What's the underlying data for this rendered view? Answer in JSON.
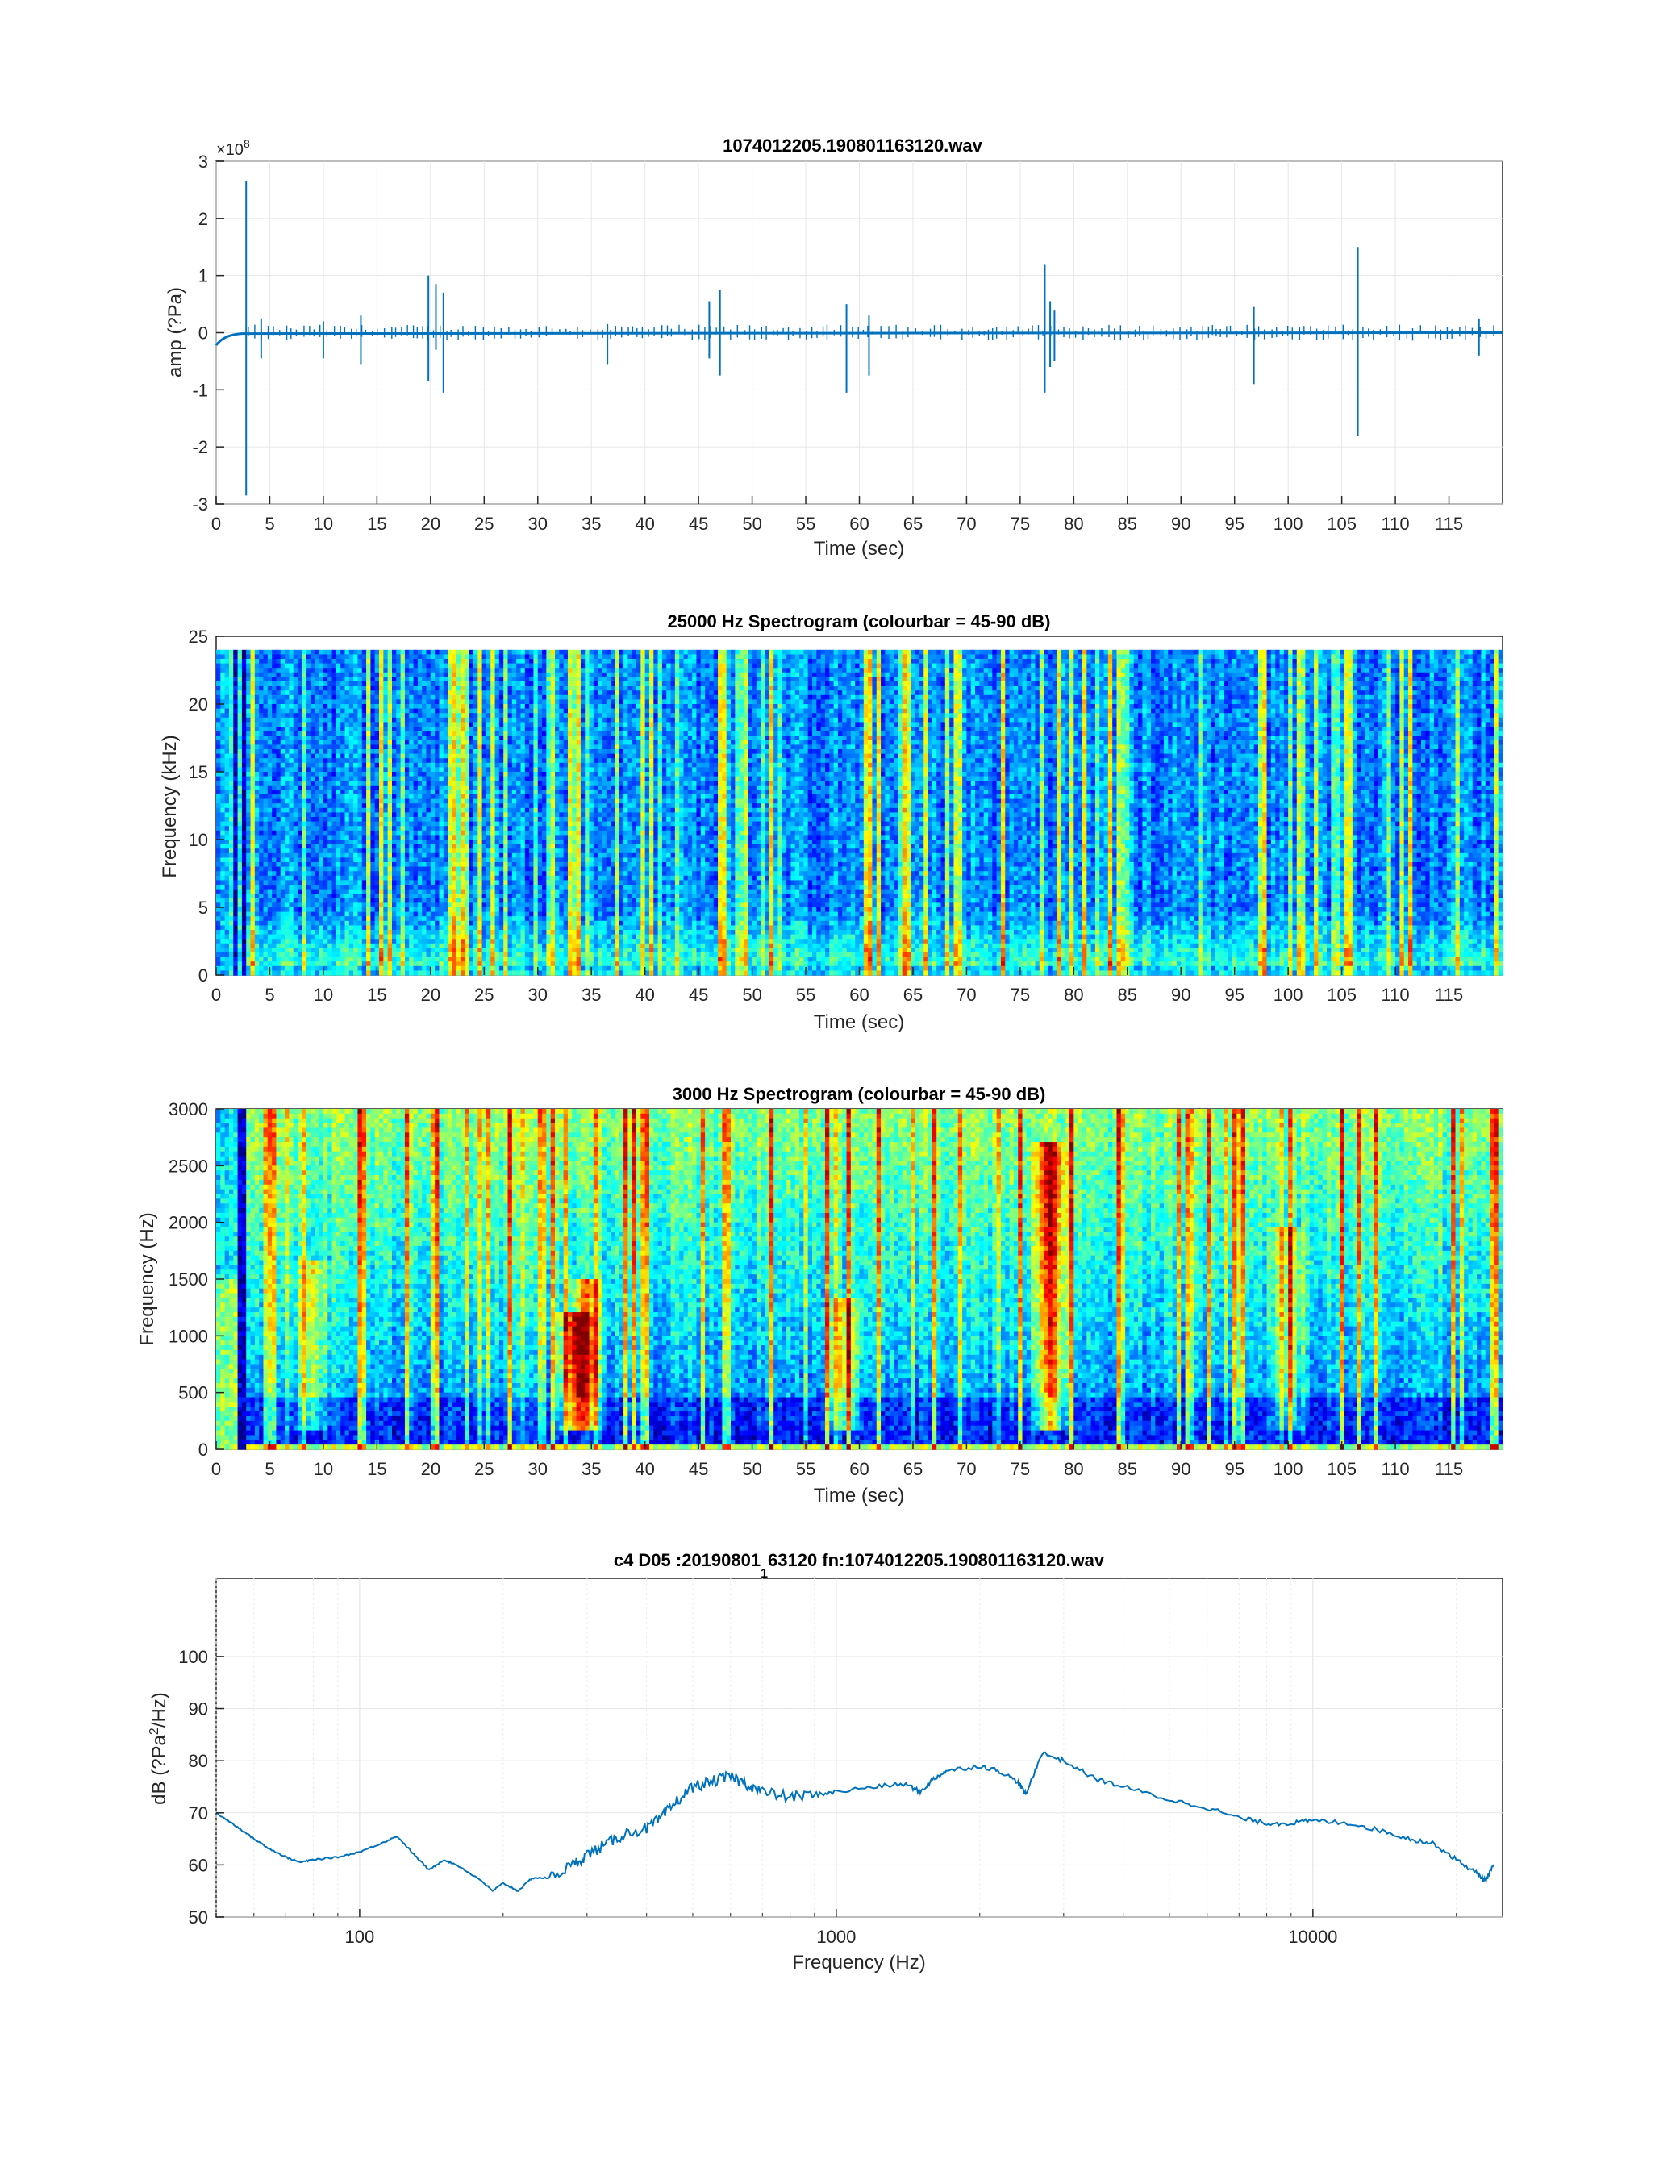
{
  "chart_data": [
    {
      "type": "line",
      "title": "1074012205.190801163120.wav",
      "xlabel": "Time (sec)",
      "ylabel": "amp (?Pa)",
      "exponent_label": "×10",
      "exponent_power": "8",
      "xlim": [
        0,
        120
      ],
      "ylim": [
        -3,
        3
      ],
      "grid": true,
      "xticks": [
        "0",
        "5",
        "10",
        "15",
        "20",
        "25",
        "30",
        "35",
        "40",
        "45",
        "50",
        "55",
        "60",
        "65",
        "70",
        "75",
        "80",
        "85",
        "90",
        "95",
        "100",
        "105",
        "110",
        "115"
      ],
      "yticks": [
        "-3",
        "-2",
        "-1",
        "0",
        "1",
        "2",
        "3"
      ],
      "spikes": [
        {
          "t": 2.8,
          "hi": 2.65,
          "lo": -2.85
        },
        {
          "t": 4.2,
          "hi": 0.25,
          "lo": -0.45
        },
        {
          "t": 10.0,
          "hi": 0.2,
          "lo": -0.45
        },
        {
          "t": 13.5,
          "hi": 0.3,
          "lo": -0.55
        },
        {
          "t": 19.8,
          "hi": 1.0,
          "lo": -0.85
        },
        {
          "t": 20.5,
          "hi": 0.85,
          "lo": -0.3
        },
        {
          "t": 21.2,
          "hi": 0.7,
          "lo": -1.05
        },
        {
          "t": 36.5,
          "hi": 0.15,
          "lo": -0.55
        },
        {
          "t": 46.0,
          "hi": 0.55,
          "lo": -0.45
        },
        {
          "t": 47.0,
          "hi": 0.75,
          "lo": -0.75
        },
        {
          "t": 58.8,
          "hi": 0.5,
          "lo": -1.05
        },
        {
          "t": 60.9,
          "hi": 0.3,
          "lo": -0.75
        },
        {
          "t": 77.3,
          "hi": 1.2,
          "lo": -1.05
        },
        {
          "t": 77.8,
          "hi": 0.55,
          "lo": -0.6
        },
        {
          "t": 78.2,
          "hi": 0.4,
          "lo": -0.5
        },
        {
          "t": 96.8,
          "hi": 0.45,
          "lo": -0.9
        },
        {
          "t": 106.5,
          "hi": 1.5,
          "lo": -1.8
        },
        {
          "t": 117.8,
          "hi": 0.25,
          "lo": -0.4
        }
      ]
    },
    {
      "type": "heatmap",
      "title": "25000 Hz Spectrogram (colourbar = 45-90 dB)",
      "xlabel": "Time (sec)",
      "ylabel": "Frequency (kHz)",
      "xlim": [
        0,
        120
      ],
      "ylim": [
        0,
        25
      ],
      "data_top": 24,
      "color_range_db": [
        45,
        90
      ],
      "colormap": "jet",
      "xticks": [
        "0",
        "5",
        "10",
        "15",
        "20",
        "25",
        "30",
        "35",
        "40",
        "45",
        "50",
        "55",
        "60",
        "65",
        "70",
        "75",
        "80",
        "85",
        "90",
        "95",
        "100",
        "105",
        "110",
        "115"
      ],
      "yticks": [
        "0",
        "5",
        "10",
        "15",
        "20",
        "25"
      ]
    },
    {
      "type": "heatmap",
      "title": "3000 Hz Spectrogram (colourbar = 45-90 dB)",
      "xlabel": "Time (sec)",
      "ylabel": "Frequency (Hz)",
      "xlim": [
        0,
        120
      ],
      "ylim": [
        0,
        3000
      ],
      "color_range_db": [
        45,
        90
      ],
      "colormap": "jet",
      "xticks": [
        "0",
        "5",
        "10",
        "15",
        "20",
        "25",
        "30",
        "35",
        "40",
        "45",
        "50",
        "55",
        "60",
        "65",
        "70",
        "75",
        "80",
        "85",
        "90",
        "95",
        "100",
        "105",
        "110",
        "115"
      ],
      "yticks": [
        "0",
        "500",
        "1000",
        "1500",
        "2000",
        "2500",
        "3000"
      ]
    },
    {
      "type": "line",
      "title_left": "c4 D05 :20190801",
      "title_sub": "1",
      "title_right": "63120 fn:1074012205.190801163120.wav",
      "xlabel": "Frequency (Hz)",
      "ylabel_a": "dB  (?Pa",
      "ylabel_sup": "2",
      "ylabel_b": "/Hz)",
      "xscale": "log",
      "xlim": [
        50,
        25000
      ],
      "ylim": [
        50,
        115
      ],
      "grid": true,
      "xticks": [
        "100",
        "1000",
        "10000"
      ],
      "yticks": [
        "50",
        "60",
        "70",
        "80",
        "90",
        "100"
      ],
      "x": [
        50,
        55,
        60,
        65,
        70,
        75,
        80,
        90,
        100,
        110,
        120,
        130,
        140,
        150,
        160,
        180,
        190,
        200,
        215,
        230,
        250,
        280,
        300,
        330,
        360,
        400,
        430,
        460,
        500,
        550,
        600,
        650,
        700,
        800,
        900,
        1000,
        1200,
        1400,
        1500,
        1600,
        1700,
        2000,
        2200,
        2400,
        2500,
        2700,
        3000,
        3500,
        4000,
        5000,
        6000,
        7000,
        8000,
        9000,
        10000,
        12000,
        14000,
        16000,
        18000,
        20000,
        22000,
        23000,
        24000
      ],
      "y": [
        70,
        67.5,
        65,
        63,
        61.5,
        60.5,
        61,
        61.5,
        62.5,
        64,
        65.5,
        62,
        59,
        61,
        60,
        57,
        55,
        56.5,
        55,
        57.5,
        57.5,
        60,
        62,
        64,
        66,
        67,
        69,
        72,
        75,
        76,
        77,
        75.5,
        74,
        73,
        73.5,
        74,
        75,
        75.5,
        74,
        76.5,
        78,
        79,
        78,
        76,
        73.5,
        81.5,
        80,
        76.5,
        75,
        72.5,
        71,
        69,
        68,
        68,
        68.5,
        68,
        66.5,
        65,
        64,
        61,
        58.5,
        57,
        60
      ]
    }
  ]
}
